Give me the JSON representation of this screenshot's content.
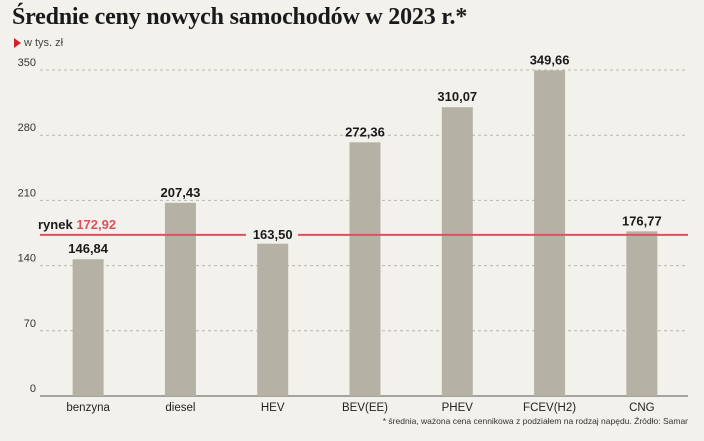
{
  "title": "Średnie ceny nowych samochodów w 2023 r.*",
  "subtitle": "w tys. zł",
  "footnote": "* średnia, ważona cena cennikowa z podziałem na rodzaj napędu. Źródło: Samar",
  "colors": {
    "bar": "#b5b2a5",
    "market_line": "#d9535c",
    "marker": "#d3202f",
    "grid": "#b8b6ae"
  },
  "chart_data": {
    "type": "bar",
    "categories": [
      "benzyna",
      "diesel",
      "HEV",
      "BEV(EE)",
      "PHEV",
      "FCEV(H2)",
      "CNG"
    ],
    "values": [
      146.84,
      207.43,
      163.5,
      272.36,
      310.07,
      349.66,
      176.77
    ],
    "value_labels": [
      "146,84",
      "207,43",
      "163,50",
      "272,36",
      "310,07",
      "349,66",
      "176,77"
    ],
    "yticks": [
      0,
      70,
      140,
      210,
      280,
      350
    ],
    "ylim": [
      0,
      350
    ],
    "grid": true,
    "reference_line": {
      "label": "rynek",
      "value": 172.92,
      "value_label": "172,92"
    }
  }
}
